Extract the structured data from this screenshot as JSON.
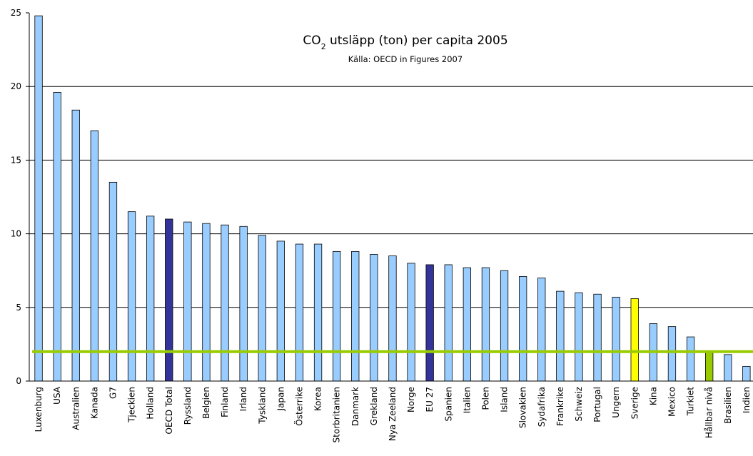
{
  "chart_data": {
    "type": "bar",
    "title": {
      "prefix": "CO",
      "sub": "2",
      "suffix": " utsläpp (ton) per capita 2005"
    },
    "subtitle": "Källa: OECD in Figures 2007",
    "xlabel": "",
    "ylabel": "",
    "ylim": [
      0,
      25
    ],
    "yticks": [
      "0",
      "5",
      "10",
      "15",
      "20",
      "25"
    ],
    "grid": true,
    "colors": {
      "default": "#99ccff",
      "aggregate": "#333399",
      "highlight": "#ffff00",
      "sustainable": "#99cc00",
      "gridline": "#000000"
    },
    "categories": [
      "Luxenburg",
      "USA",
      "Australien",
      "Kanada",
      "G7",
      "Tjeckien",
      "Holland",
      "OECD Total",
      "Ryssland",
      "Belgien",
      "Finland",
      "Irland",
      "Tyskland",
      "Japan",
      "Österrike",
      "Korea",
      "Storbritanien",
      "Danmark",
      "Grekland",
      "Nya Zeeland",
      "Norge",
      "EU 27",
      "Spanien",
      "Italien",
      "Polen",
      "Island",
      "Slovakien",
      "Sydafrika",
      "Frankrike",
      "Schweiz",
      "Portugal",
      "Ungern",
      "Sverige",
      "Kina",
      "Mexico",
      "Turkiet",
      "Hållbar nivå",
      "Brasilien",
      "Indien"
    ],
    "values": [
      24.8,
      19.6,
      18.4,
      17.0,
      13.5,
      11.5,
      11.2,
      11.0,
      10.8,
      10.7,
      10.6,
      10.5,
      9.9,
      9.5,
      9.3,
      9.3,
      8.8,
      8.8,
      8.6,
      8.5,
      8.0,
      7.9,
      7.9,
      7.7,
      7.7,
      7.5,
      7.1,
      7.0,
      6.1,
      6.0,
      5.9,
      5.7,
      5.6,
      3.9,
      3.7,
      3.0,
      2.0,
      1.8,
      1.0
    ],
    "bar_color_keys": [
      "default",
      "default",
      "default",
      "default",
      "default",
      "default",
      "default",
      "aggregate",
      "default",
      "default",
      "default",
      "default",
      "default",
      "default",
      "default",
      "default",
      "default",
      "default",
      "default",
      "default",
      "default",
      "aggregate",
      "default",
      "default",
      "default",
      "default",
      "default",
      "default",
      "default",
      "default",
      "default",
      "default",
      "highlight",
      "default",
      "default",
      "default",
      "sustainable",
      "default",
      "default"
    ],
    "reference_line": {
      "value": 2.0,
      "color": "#99cc00"
    }
  }
}
